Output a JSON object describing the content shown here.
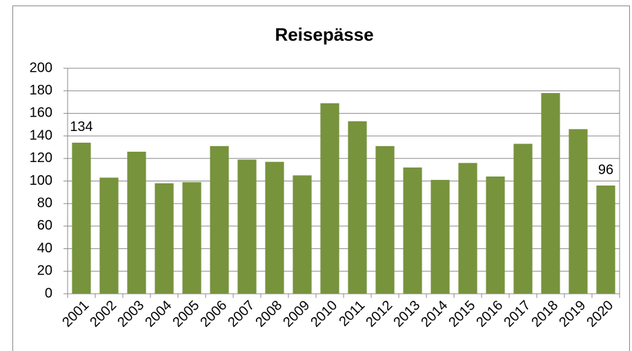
{
  "chart_data": {
    "type": "bar",
    "title": "Reisepässe",
    "categories": [
      "2001",
      "2002",
      "2003",
      "2004",
      "2005",
      "2006",
      "2007",
      "2008",
      "2009",
      "2010",
      "2011",
      "2012",
      "2013",
      "2014",
      "2015",
      "2016",
      "2017",
      "2018",
      "2019",
      "2020"
    ],
    "values": [
      134,
      103,
      126,
      98,
      99,
      131,
      119,
      117,
      105,
      169,
      153,
      131,
      112,
      101,
      116,
      104,
      133,
      178,
      146,
      96
    ],
    "value_labels": [
      "134",
      null,
      null,
      null,
      null,
      null,
      null,
      null,
      null,
      null,
      null,
      null,
      null,
      null,
      null,
      null,
      null,
      null,
      null,
      "96"
    ],
    "color": "#77933c",
    "ylim": [
      0,
      200
    ],
    "yticks": [
      0,
      20,
      40,
      60,
      80,
      100,
      120,
      140,
      160,
      180,
      200
    ],
    "grid": true
  }
}
